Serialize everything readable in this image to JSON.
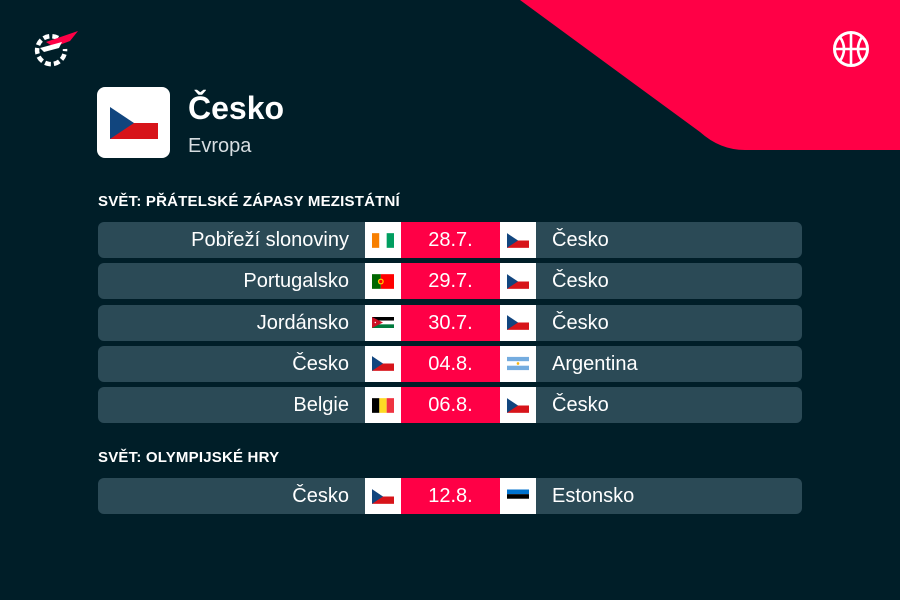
{
  "colors": {
    "background": "#001e28",
    "accent": "#ff0046",
    "row": "#2b4a56",
    "text": "#ffffff"
  },
  "header": {
    "logo_icon": "flashscore-logo-icon",
    "sport_icon": "basketball-icon"
  },
  "team": {
    "name": "Česko",
    "region": "Evropa",
    "flag": "cz"
  },
  "sections": [
    {
      "title": "SVĚT: PŘÁTELSKÉ ZÁPASY MEZISTÁTNÍ",
      "matches": [
        {
          "home": "Pobřeží slonoviny",
          "home_flag": "ci",
          "date": "28.7.",
          "away": "Česko",
          "away_flag": "cz"
        },
        {
          "home": "Portugalsko",
          "home_flag": "pt",
          "date": "29.7.",
          "away": "Česko",
          "away_flag": "cz"
        },
        {
          "home": "Jordánsko",
          "home_flag": "jo",
          "date": "30.7.",
          "away": "Česko",
          "away_flag": "cz"
        },
        {
          "home": "Česko",
          "home_flag": "cz",
          "date": "04.8.",
          "away": "Argentina",
          "away_flag": "ar"
        },
        {
          "home": "Belgie",
          "home_flag": "be",
          "date": "06.8.",
          "away": "Česko",
          "away_flag": "cz"
        }
      ]
    },
    {
      "title": "SVĚT: OLYMPIJSKÉ HRY",
      "matches": [
        {
          "home": "Česko",
          "home_flag": "cz",
          "date": "12.8.",
          "away": "Estonsko",
          "away_flag": "ee"
        }
      ]
    }
  ]
}
